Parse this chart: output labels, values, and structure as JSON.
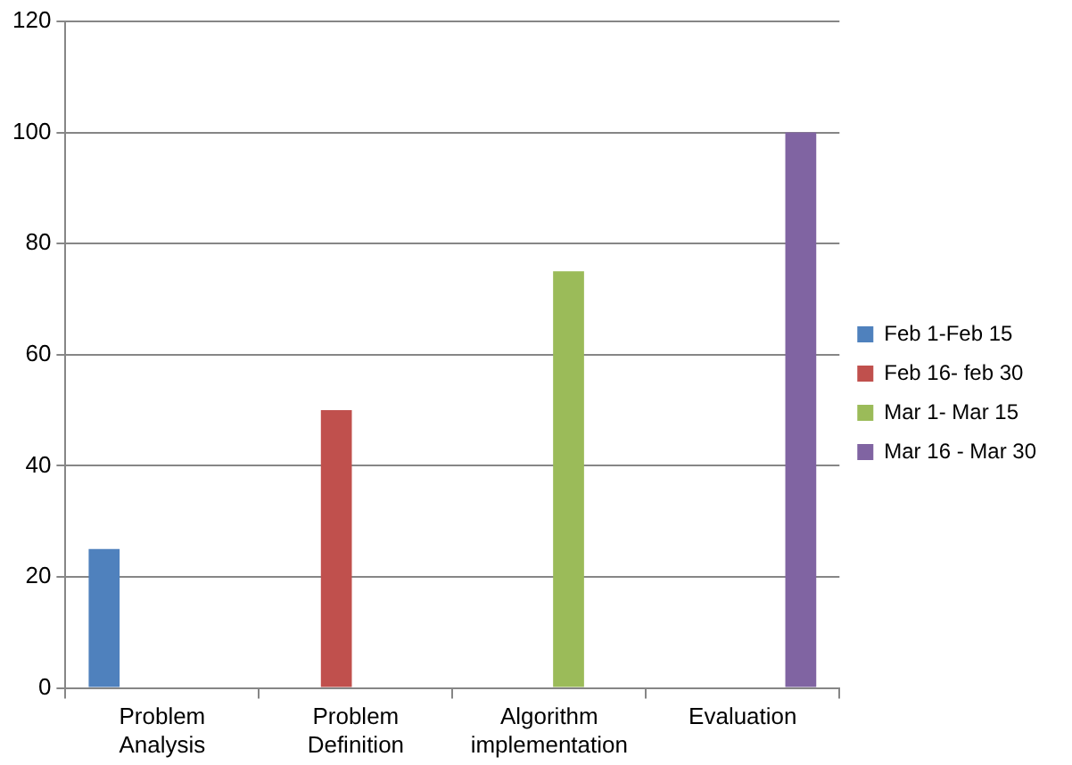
{
  "chart_data": {
    "type": "bar",
    "categories": [
      "Problem Analysis",
      "Problem Definition",
      "Algorithm implementation",
      "Evaluation"
    ],
    "series": [
      {
        "name": "Feb 1-Feb 15",
        "color": "#4f81bd",
        "values": [
          25,
          null,
          null,
          null
        ]
      },
      {
        "name": "Feb 16- feb 30",
        "color": "#c0504d",
        "values": [
          null,
          50,
          null,
          null
        ]
      },
      {
        "name": "Mar 1- Mar 15",
        "color": "#9bbb59",
        "values": [
          null,
          null,
          75,
          null
        ]
      },
      {
        "name": "Mar 16 - Mar 30",
        "color": "#8064a2",
        "values": [
          null,
          null,
          null,
          100
        ]
      }
    ],
    "ylim": [
      0,
      120
    ],
    "yticks": [
      0,
      20,
      40,
      60,
      80,
      100,
      120
    ],
    "grid": "y",
    "legend": "right"
  }
}
